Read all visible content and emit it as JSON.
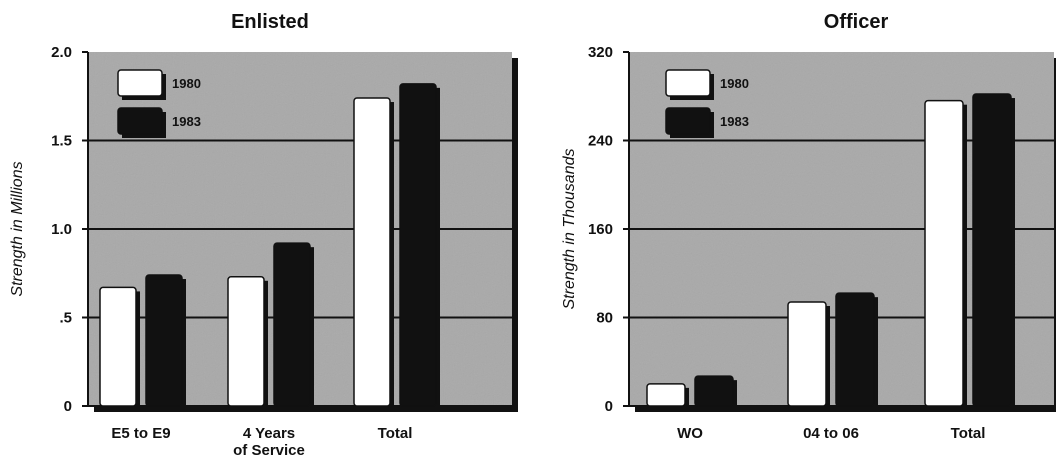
{
  "chart_data": [
    {
      "type": "bar",
      "title": "Enlisted",
      "ylabel": "Strength in Millions",
      "xlabel": "",
      "ylim": [
        0,
        2.0
      ],
      "yticks": [
        0,
        0.5,
        1.0,
        1.5,
        2.0
      ],
      "ytick_labels": [
        "0",
        ".5",
        "1.0",
        "1.5",
        "2.0"
      ],
      "categories": [
        "E5 to E9",
        "4 Years of Service",
        "Total"
      ],
      "category_lines": [
        [
          "E5 to E9"
        ],
        [
          "4 Years",
          "of Service"
        ],
        [
          "Total"
        ]
      ],
      "series": [
        {
          "name": "1980",
          "color": "#ffffff",
          "values": [
            0.67,
            0.73,
            1.74
          ]
        },
        {
          "name": "1983",
          "color": "#111111",
          "values": [
            0.74,
            0.92,
            1.82
          ]
        }
      ],
      "legend_position": "top-left",
      "grid": true,
      "background": "#a9a9a9"
    },
    {
      "type": "bar",
      "title": "Officer",
      "ylabel": "Strength in Thousands",
      "xlabel": "",
      "ylim": [
        0,
        320
      ],
      "yticks": [
        0,
        80,
        160,
        240,
        320
      ],
      "ytick_labels": [
        "0",
        "80",
        "160",
        "240",
        "320"
      ],
      "categories": [
        "WO",
        "04 to 06",
        "Total"
      ],
      "category_lines": [
        [
          "WO"
        ],
        [
          "04 to 06"
        ],
        [
          "Total"
        ]
      ],
      "series": [
        {
          "name": "1980",
          "color": "#ffffff",
          "values": [
            20,
            94,
            276
          ]
        },
        {
          "name": "1983",
          "color": "#111111",
          "values": [
            27,
            102,
            282
          ]
        }
      ],
      "legend_position": "top-left",
      "grid": true,
      "background": "#a9a9a9"
    }
  ]
}
